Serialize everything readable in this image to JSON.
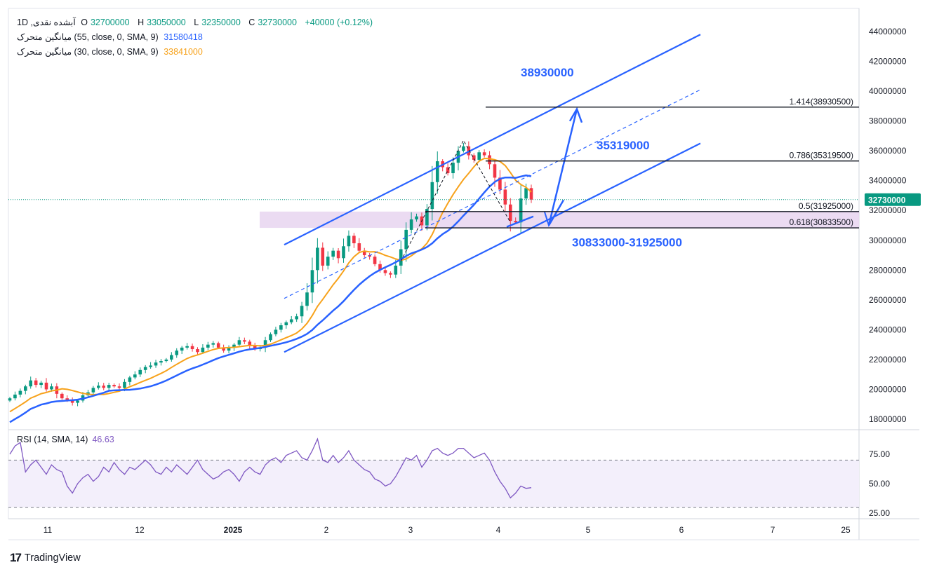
{
  "header": {
    "symbol": "آبشده نقدی, 1D",
    "open_key": "O",
    "open": "32700000",
    "high_key": "H",
    "high": "33050000",
    "low_key": "L",
    "low": "32350000",
    "close_key": "C",
    "close": "32730000",
    "change": "+40000 (+0.12%)",
    "sma55_label": "میانگین متحرک (55, close, 0, SMA, 9)",
    "sma55_value": "31580418",
    "sma30_label": "میانگین متحرک (30, close, 0, SMA, 9)",
    "sma30_value": "33841000"
  },
  "rsi": {
    "label": "RSI (14, SMA, 14)",
    "value": "46.63"
  },
  "branding": {
    "logo_mark": "17",
    "name": "TradingView"
  },
  "colors": {
    "up": "#089981",
    "down": "#f23645",
    "sma55": "#2962ff",
    "sma30": "#f7a21b",
    "trend": "#2962ff",
    "annotation": "#2962ff",
    "rsi": "#7e57c2",
    "rsi_band": "#f3effb",
    "zone": "#e8d5f0",
    "price_tag": "#089981"
  },
  "chart_data": [
    {
      "type": "candlestick",
      "title": "",
      "x_tick_labels": [
        "11",
        "12",
        "2025",
        "2",
        "3",
        "4",
        "5",
        "6",
        "7",
        "25"
      ],
      "ylim": [
        17500000,
        45000000
      ],
      "y_tick_labels": [
        "18000000",
        "20000000",
        "22000000",
        "24000000",
        "26000000",
        "28000000",
        "30000000",
        "32000000",
        "34000000",
        "36000000",
        "38000000",
        "40000000",
        "42000000",
        "44000000"
      ],
      "last_price": "32730000",
      "close_series": [
        19400000,
        19650000,
        19900000,
        20200000,
        20600000,
        20300000,
        20450000,
        20000000,
        20200000,
        19700000,
        19400000,
        19300000,
        19100000,
        19250000,
        19600000,
        19800000,
        20100000,
        20250000,
        20100000,
        20300000,
        20200000,
        20100000,
        20500000,
        20800000,
        21000000,
        21300000,
        21500000,
        21600000,
        21800000,
        21900000,
        22000000,
        22300000,
        22600000,
        22800000,
        22900000,
        22700000,
        22500000,
        22800000,
        23000000,
        23100000,
        22800000,
        22600000,
        22800000,
        23000000,
        23300000,
        23200000,
        22900000,
        22700000,
        22800000,
        23300000,
        23700000,
        24000000,
        24300000,
        24500000,
        24700000,
        24900000,
        25600000,
        26500000,
        28000000,
        29500000,
        28300000,
        28900000,
        29300000,
        28800000,
        29600000,
        30300000,
        29800000,
        29300000,
        29000000,
        28900000,
        28400000,
        28000000,
        27800000,
        27700000,
        28300000,
        29400000,
        30700000,
        31400000,
        31600000,
        31000000,
        32100000,
        33900000,
        35300000,
        34900000,
        34500000,
        35200000,
        36000000,
        36300000,
        35700000,
        35400000,
        35900000,
        35700000,
        35100000,
        34200000,
        33400000,
        32400000,
        31300000,
        31200000,
        32800000,
        33500000,
        32730000
      ],
      "series": [
        {
          "name": "میانگین متحرک (55, close, 0, SMA, 9)",
          "color": "#2962ff"
        },
        {
          "name": "میانگین متحرک (30, close, 0, SMA, 9)",
          "color": "#f7a21b"
        }
      ],
      "fib_levels": [
        {
          "label": "1.414(38930500)",
          "value": 38930500
        },
        {
          "label": "0.786(35319500)",
          "value": 35319500
        },
        {
          "label": "0.5(31925000)",
          "value": 31925000
        },
        {
          "label": "0.618(30833500)",
          "value": 30833500
        }
      ],
      "annotations": [
        {
          "text": "38930000"
        },
        {
          "text": "35319000"
        },
        {
          "text": "30833000-31925000"
        }
      ],
      "support_zone": [
        30833500,
        31925000
      ]
    },
    {
      "type": "line",
      "title": "RSI (14, SMA, 14)",
      "ylim": [
        20,
        100
      ],
      "y_tick_labels": [
        "75.00",
        "50.00",
        "25.00"
      ],
      "band": [
        30,
        70
      ],
      "values": [
        75,
        82,
        85,
        60,
        66,
        70,
        64,
        58,
        66,
        62,
        60,
        48,
        42,
        50,
        55,
        58,
        52,
        56,
        64,
        60,
        68,
        62,
        58,
        64,
        62,
        66,
        70,
        66,
        60,
        58,
        64,
        60,
        66,
        62,
        58,
        64,
        70,
        62,
        58,
        54,
        56,
        60,
        62,
        58,
        52,
        60,
        64,
        60,
        58,
        66,
        70,
        72,
        68,
        74,
        76,
        78,
        72,
        70,
        78,
        88,
        70,
        68,
        74,
        68,
        72,
        78,
        70,
        66,
        62,
        60,
        54,
        52,
        48,
        50,
        56,
        64,
        72,
        70,
        74,
        64,
        70,
        78,
        80,
        76,
        74,
        76,
        80,
        80,
        76,
        72,
        74,
        76,
        70,
        60,
        52,
        46,
        38,
        42,
        48,
        46,
        46.63
      ]
    }
  ]
}
